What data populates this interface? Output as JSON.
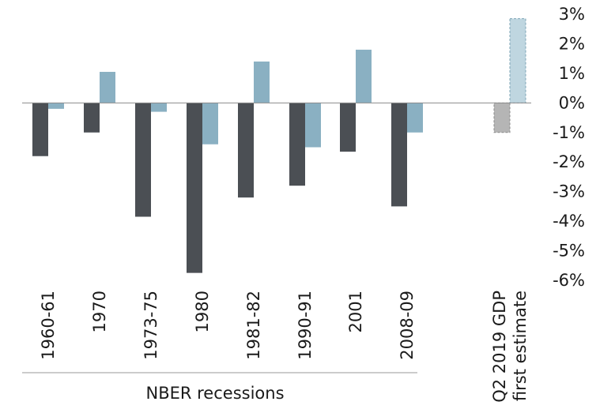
{
  "chart_data": {
    "type": "bar",
    "title": "",
    "xlabel": "",
    "ylabel": "",
    "ylim": [
      -6,
      3
    ],
    "y_ticks": [
      3,
      2,
      1,
      0,
      -1,
      -2,
      -3,
      -4,
      -5,
      -6
    ],
    "y_tick_labels": [
      "3%",
      "2%",
      "1%",
      "0%",
      "-1%",
      "-2%",
      "-3%",
      "-4%",
      "-5%",
      "-6%"
    ],
    "categories": [
      "1960-61",
      "1970",
      "1973-75",
      "1980",
      "1981-82",
      "1990-91",
      "2001",
      "2008-09",
      "Q2 2019 GDP first estimate"
    ],
    "category_lines": [
      [
        "1960-61"
      ],
      [
        "1970"
      ],
      [
        "1973-75"
      ],
      [
        "1980"
      ],
      [
        "1981-82"
      ],
      [
        "1990-91"
      ],
      [
        "2001"
      ],
      [
        "2008-09"
      ],
      [
        "Q2 2019 GDP",
        "first estimate"
      ]
    ],
    "series": [
      {
        "name": "dark",
        "color": "#4b4f54",
        "values": [
          -1.8,
          -1.0,
          -3.85,
          -5.75,
          -3.2,
          -2.8,
          -1.65,
          -3.5,
          -1.0
        ],
        "estimate_color": "#b5b5b5"
      },
      {
        "name": "light",
        "color": "#8ab0c2",
        "values": [
          -0.2,
          1.05,
          -0.3,
          -1.4,
          1.4,
          -1.5,
          1.8,
          -1.0,
          2.85
        ],
        "estimate_color": "#bfd6e0"
      }
    ],
    "estimate_index": 8,
    "group_label": "NBER recessions"
  }
}
